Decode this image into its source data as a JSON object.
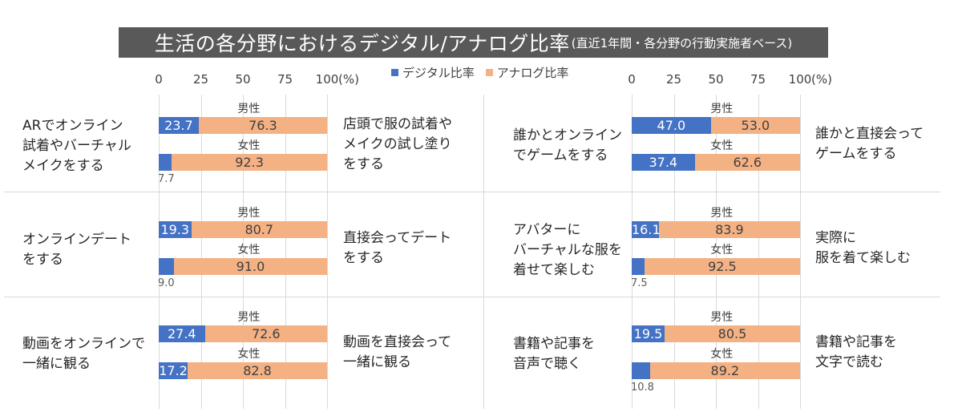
{
  "title": "生活の各分野におけるデジタル/アナログ比率",
  "subtitle": "(直近1年間・各分野の行動実施者ベース)",
  "legend": [
    {
      "label": "デジタル比率",
      "color": "#4472c4"
    },
    {
      "label": "アナログ比率",
      "color": "#f4b183"
    }
  ],
  "axis": {
    "ticks": [
      "0",
      "25",
      "50",
      "75",
      "100"
    ],
    "unit": "(%)"
  },
  "chart_data": {
    "type": "bar",
    "orientation": "horizontal",
    "stacked": true,
    "title": "生活の各分野におけるデジタル/アナログ比率",
    "subtitle": "(直近1年間・各分野の行動実施者ベース)",
    "xlim": [
      0,
      100
    ],
    "x_ticks": [
      0,
      25,
      50,
      75,
      100
    ],
    "x_unit": "(%)",
    "series_names": [
      "デジタル比率",
      "アナログ比率"
    ],
    "panels": [
      {
        "digital_label": [
          "ARでオンライン",
          "試着やバーチャル",
          "メイクをする"
        ],
        "analog_label": [
          "店頭で服の試着や",
          "メイクの試し塗り",
          "をする"
        ],
        "groups": [
          {
            "label": "男性",
            "digital": 23.7,
            "analog": 76.3
          },
          {
            "label": "女性",
            "digital": 7.7,
            "analog": 92.3
          }
        ]
      },
      {
        "digital_label": [
          "誰かとオンライン",
          "でゲームをする"
        ],
        "analog_label": [
          "誰かと直接会って",
          "ゲームをする"
        ],
        "groups": [
          {
            "label": "男性",
            "digital": 47.0,
            "analog": 53.0
          },
          {
            "label": "女性",
            "digital": 37.4,
            "analog": 62.6
          }
        ]
      },
      {
        "digital_label": [
          "オンラインデート",
          "をする"
        ],
        "analog_label": [
          "直接会ってデート",
          "をする"
        ],
        "groups": [
          {
            "label": "男性",
            "digital": 19.3,
            "analog": 80.7
          },
          {
            "label": "女性",
            "digital": 9.0,
            "analog": 91.0
          }
        ]
      },
      {
        "digital_label": [
          "アバターに",
          "バーチャルな服を",
          "着せて楽しむ"
        ],
        "analog_label": [
          "実際に",
          "服を着て楽しむ"
        ],
        "groups": [
          {
            "label": "男性",
            "digital": 16.1,
            "analog": 83.9
          },
          {
            "label": "女性",
            "digital": 7.5,
            "analog": 92.5
          }
        ]
      },
      {
        "digital_label": [
          "動画をオンラインで",
          "一緒に観る"
        ],
        "analog_label": [
          "動画を直接会って",
          "一緒に観る"
        ],
        "groups": [
          {
            "label": "男性",
            "digital": 27.4,
            "analog": 72.6
          },
          {
            "label": "女性",
            "digital": 17.2,
            "analog": 82.8
          }
        ]
      },
      {
        "digital_label": [
          "書籍や記事を",
          "音声で聴く"
        ],
        "analog_label": [
          "書籍や記事を",
          "文字で読む"
        ],
        "groups": [
          {
            "label": "男性",
            "digital": 19.5,
            "analog": 80.5
          },
          {
            "label": "女性",
            "digital": 10.8,
            "analog": 89.2
          }
        ]
      }
    ]
  }
}
